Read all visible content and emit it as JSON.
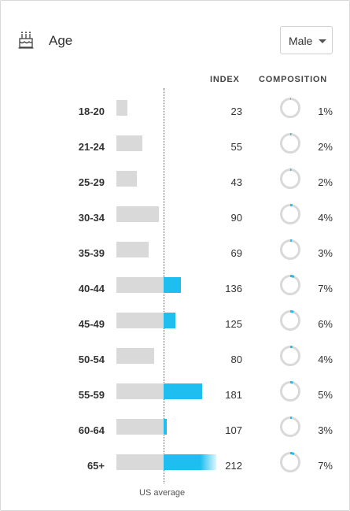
{
  "header": {
    "title": "Age",
    "icon": "birthday-cake-icon",
    "dropdown": {
      "selected": "Male"
    }
  },
  "columns": {
    "index": "INDEX",
    "composition": "COMPOSITION"
  },
  "baseline": {
    "label": "US average",
    "index_value": 100
  },
  "colors": {
    "bar_gray": "#d9d9d9",
    "bar_blue": "#1fbef0",
    "ring_gray": "#d9d9d9",
    "ring_blue": "#1fbef0"
  },
  "rows": [
    {
      "label": "18-20",
      "index": "23",
      "composition": "1%"
    },
    {
      "label": "21-24",
      "index": "55",
      "composition": "2%"
    },
    {
      "label": "25-29",
      "index": "43",
      "composition": "2%"
    },
    {
      "label": "30-34",
      "index": "90",
      "composition": "4%"
    },
    {
      "label": "35-39",
      "index": "69",
      "composition": "3%"
    },
    {
      "label": "40-44",
      "index": "136",
      "composition": "7%"
    },
    {
      "label": "45-49",
      "index": "125",
      "composition": "6%"
    },
    {
      "label": "50-54",
      "index": "80",
      "composition": "4%"
    },
    {
      "label": "55-59",
      "index": "181",
      "composition": "5%"
    },
    {
      "label": "60-64",
      "index": "107",
      "composition": "3%"
    },
    {
      "label": "65+",
      "index": "212",
      "composition": "7%"
    }
  ]
}
